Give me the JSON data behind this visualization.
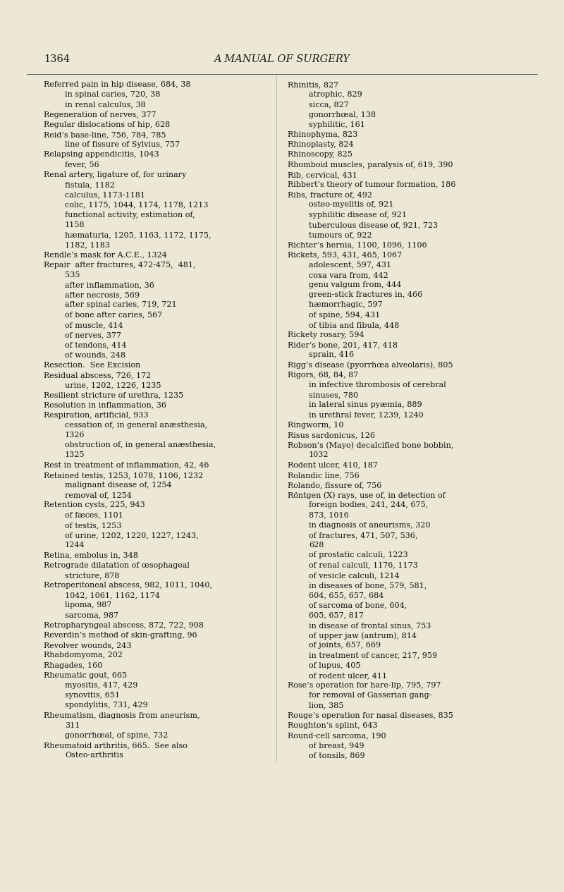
{
  "background_color": "#ede8d5",
  "page_number": "1364",
  "page_title": "A MANUAL OF SURGERY",
  "left_column": [
    [
      "Referred pain in hip disease, 684, 38",
      false
    ],
    [
      "in spinal caries, 720, 38",
      true
    ],
    [
      "in renal calculus, 38",
      true
    ],
    [
      "Regeneration of nerves, 377",
      false
    ],
    [
      "Regular dislocations of hip, 628",
      false
    ],
    [
      "Reid’s base-line, 756, 784, 785",
      false
    ],
    [
      "line of fissure of Sylvius, 757",
      true
    ],
    [
      "Relapsing appendicitis, 1043",
      false
    ],
    [
      "fever, 56",
      true
    ],
    [
      "Renal artery, ligature of, for urinary",
      false
    ],
    [
      "fistula, 1182",
      true
    ],
    [
      "calculus, 1173-1181",
      true
    ],
    [
      "colic, 1175, 1044, 1174, 1178, 1213",
      true
    ],
    [
      "functional activity, estimation of,",
      true
    ],
    [
      "1158",
      true
    ],
    [
      "hæmaturia, 1205, 1163, 1172, 1175,",
      true
    ],
    [
      "1182, 1183",
      true
    ],
    [
      "Rendle’s mask for A.C.E., 1324",
      false
    ],
    [
      "Repair  after fractures, 472-475,  481,",
      false
    ],
    [
      "535",
      true
    ],
    [
      "after inflammation, 36",
      true
    ],
    [
      "after necrosis, 569",
      true
    ],
    [
      "after spinal caries, 719, 721",
      true
    ],
    [
      "of bone after caries, 567",
      true
    ],
    [
      "of muscle, 414",
      true
    ],
    [
      "of nerves, 377",
      true
    ],
    [
      "of tendons, 414",
      true
    ],
    [
      "of wounds, 248",
      true
    ],
    [
      "Resection.  See Excision",
      false
    ],
    [
      "Residual abscess, 726, 172",
      false
    ],
    [
      "urine, 1202, 1226, 1235",
      true
    ],
    [
      "Resilient stricture of urethra, 1235",
      false
    ],
    [
      "Resolution in inflammation, 36",
      false
    ],
    [
      "Respiration, artificial, 933",
      false
    ],
    [
      "cessation of, in general anæsthesia,",
      true
    ],
    [
      "1326",
      true
    ],
    [
      "obstruction of, in general anæsthesia,",
      true
    ],
    [
      "1325",
      true
    ],
    [
      "Rest in treatment of inflammation, 42, 46",
      false
    ],
    [
      "Retained testis, 1253, 1078, 1106, 1232",
      false
    ],
    [
      "malignant disease of, 1254",
      true
    ],
    [
      "removal of, 1254",
      true
    ],
    [
      "Retention cysts, 225, 943",
      false
    ],
    [
      "of fæces, 1101",
      true
    ],
    [
      "of testis, 1253",
      true
    ],
    [
      "of urine, 1202, 1220, 1227, 1243,",
      true
    ],
    [
      "1244",
      true
    ],
    [
      "Retina, embolus in, 348",
      false
    ],
    [
      "Retrograde dilatation of œsophageal",
      false
    ],
    [
      "stricture, 878",
      true
    ],
    [
      "Retroperitoneal abscess, 982, 1011, 1040,",
      false
    ],
    [
      "1042, 1061, 1162, 1174",
      true
    ],
    [
      "lipoma, 987",
      true
    ],
    [
      "sarcoma, 987",
      true
    ],
    [
      "Retropharyngeal abscess, 872, 722, 908",
      false
    ],
    [
      "Reverdin’s method of skin-grafting, 96",
      false
    ],
    [
      "Revolver wounds, 243",
      false
    ],
    [
      "Rhabdomyoma, 202",
      false
    ],
    [
      "Rhagades, 160",
      false
    ],
    [
      "Rheumatic gout, 665",
      false
    ],
    [
      "myositis, 417, 429",
      true
    ],
    [
      "synovitis, 651",
      true
    ],
    [
      "spondylitis, 731, 429",
      true
    ],
    [
      "Rheumatism, diagnosis from aneurism,",
      false
    ],
    [
      "311",
      true
    ],
    [
      "gonorrhœal, of spine, 732",
      true
    ],
    [
      "Rheumatoid arthritis, 665.  See also",
      false
    ],
    [
      "Osteo-arthritis",
      true
    ]
  ],
  "right_column": [
    [
      "Rhinitis, 827",
      false
    ],
    [
      "atrophic, 829",
      true
    ],
    [
      "sicca, 827",
      true
    ],
    [
      "gonorrhœal, 138",
      true
    ],
    [
      "syphilitic, 161",
      true
    ],
    [
      "Rhinophyma, 823",
      false
    ],
    [
      "Rhinoplasty, 824",
      false
    ],
    [
      "Rhinoscopy, 825",
      false
    ],
    [
      "Rhomboid muscles, paralysis of, 619, 390",
      false
    ],
    [
      "Rib, cervical, 431",
      false
    ],
    [
      "Ribbert’s theory of tumour formation, 186",
      false
    ],
    [
      "Ribs, fracture of, 492",
      false
    ],
    [
      "osteo-myelitis of, 921",
      true
    ],
    [
      "syphilitic disease of, 921",
      true
    ],
    [
      "tuberculous disease of, 921, 723",
      true
    ],
    [
      "tumours of, 922",
      true
    ],
    [
      "Richter’s hernia, 1100, 1096, 1106",
      false
    ],
    [
      "Rickets, 593, 431, 465, 1067",
      false
    ],
    [
      "adolescent, 597, 431",
      true
    ],
    [
      "coxa vara from, 442",
      true
    ],
    [
      "genu valgum from, 444",
      true
    ],
    [
      "green-stick fractures in, 466",
      true
    ],
    [
      "hæmorrhagic, 597",
      true
    ],
    [
      "of spine, 594, 431",
      true
    ],
    [
      "of tibia and fibula, 448",
      true
    ],
    [
      "Rickety rosary, 594",
      false
    ],
    [
      "Rider’s bone, 201, 417, 418",
      false
    ],
    [
      "sprain, 416",
      true
    ],
    [
      "Rigg’s disease (pyorrhœa alveolaris), 805",
      false
    ],
    [
      "Rigors, 68, 84, 87",
      false
    ],
    [
      "in infective thrombosis of cerebral",
      true
    ],
    [
      "sinuses, 780",
      true
    ],
    [
      "in lateral sinus pyæmia, 889",
      true
    ],
    [
      "in urethral fever, 1239, 1240",
      true
    ],
    [
      "Ringworm, 10",
      false
    ],
    [
      "Risus sardonicus, 126",
      false
    ],
    [
      "Robson’s (Mayo) decalcified bone bobbin,",
      false
    ],
    [
      "1032",
      true
    ],
    [
      "Rodent ulcer, 410, 187",
      false
    ],
    [
      "Rolandic line, 756",
      false
    ],
    [
      "Rolando, fissure of, 756",
      false
    ],
    [
      "Röntgen (X) rays, use of, in detection of",
      false
    ],
    [
      "foreign bodies, 241, 244, 675,",
      true
    ],
    [
      "873, 1016",
      true
    ],
    [
      "in diagnosis of aneurisms, 320",
      true
    ],
    [
      "of fractures, 471, 507, 536,",
      true
    ],
    [
      "628",
      true
    ],
    [
      "of prostatic calculi, 1223",
      true
    ],
    [
      "of renal calculi, 1176, 1173",
      true
    ],
    [
      "of vesicle calculi, 1214",
      true
    ],
    [
      "in diseases of bone, 579, 581,",
      true
    ],
    [
      "604, 655, 657, 684",
      true
    ],
    [
      "of sarcoma of bone, 604,",
      true
    ],
    [
      "605, 657, 817",
      true
    ],
    [
      "in disease of frontal sinus, 753",
      true
    ],
    [
      "of upper jaw (antrum), 814",
      true
    ],
    [
      "of joints, 657, 669",
      true
    ],
    [
      "in treatment of cancer, 217, 959",
      true
    ],
    [
      "of lupus, 405",
      true
    ],
    [
      "of rodent ulcer, 411",
      true
    ],
    [
      "Rose’s operation for hare-lip, 795, 797",
      false
    ],
    [
      "for removal of Gasserian gang-",
      true
    ],
    [
      "lion, 385",
      true
    ],
    [
      "Rouge’s operation for nasal diseases, 835",
      false
    ],
    [
      "Roughton’s splint, 643",
      false
    ],
    [
      "Round-cell sarcoma, 190",
      false
    ],
    [
      "of breast, 949",
      true
    ],
    [
      "of tonsils, 869",
      true
    ]
  ]
}
